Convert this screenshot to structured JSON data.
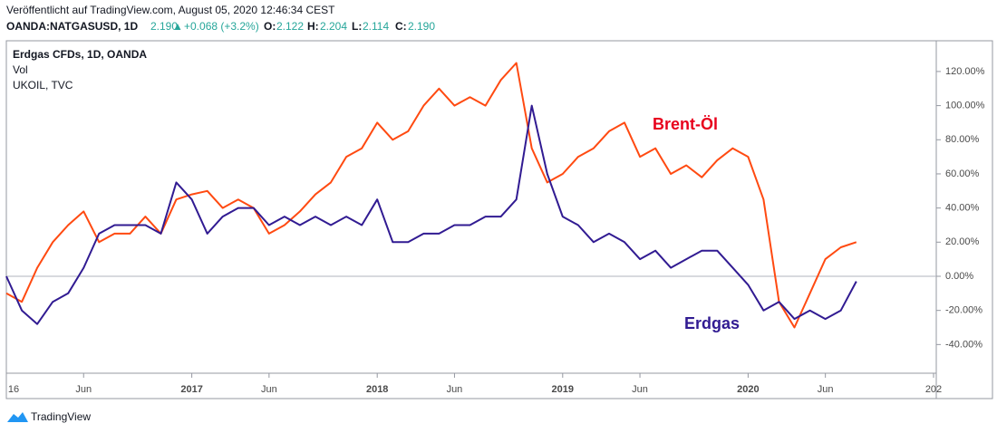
{
  "header": {
    "published": "Veröffentlicht auf TradingView.com, August 05, 2020 12:46:34 CEST",
    "symbol": "OANDA:NATGASUSD, 1D",
    "price": "2.190",
    "arrow": "▲",
    "change": "+0.068 (+3.2%)",
    "o_label": "O:",
    "o": "2.122",
    "h_label": "H:",
    "h": "2.204",
    "l_label": "L:",
    "l": "2.114",
    "c_label": "C:",
    "c": "2.190"
  },
  "legend": [
    "Erdgas CFDs, 1D, OANDA",
    "Vol",
    "UKOIL, TVC"
  ],
  "footer": {
    "logo": "TradingView"
  },
  "chart_data": {
    "type": "line",
    "x": [
      "2016-01",
      "2016-02",
      "2016-03",
      "2016-04",
      "2016-05",
      "2016-06",
      "2016-07",
      "2016-08",
      "2016-09",
      "2016-10",
      "2016-11",
      "2016-12",
      "2017-01",
      "2017-02",
      "2017-03",
      "2017-04",
      "2017-05",
      "2017-06",
      "2017-07",
      "2017-08",
      "2017-09",
      "2017-10",
      "2017-11",
      "2017-12",
      "2018-01",
      "2018-02",
      "2018-03",
      "2018-04",
      "2018-05",
      "2018-06",
      "2018-07",
      "2018-08",
      "2018-09",
      "2018-10",
      "2018-11",
      "2018-12",
      "2019-01",
      "2019-02",
      "2019-03",
      "2019-04",
      "2019-05",
      "2019-06",
      "2019-07",
      "2019-08",
      "2019-09",
      "2019-10",
      "2019-11",
      "2019-12",
      "2020-01",
      "2020-02",
      "2020-03",
      "2020-04",
      "2020-05",
      "2020-06",
      "2020-07",
      "2020-08"
    ],
    "series": [
      {
        "name": "Brent-Öl",
        "color": "#ff4a11",
        "label_color": "#e8001c",
        "values": [
          -10,
          -15,
          5,
          20,
          30,
          38,
          20,
          25,
          25,
          35,
          25,
          45,
          48,
          50,
          40,
          45,
          40,
          25,
          30,
          38,
          48,
          55,
          70,
          75,
          90,
          80,
          85,
          100,
          110,
          100,
          105,
          100,
          115,
          125,
          75,
          55,
          60,
          70,
          75,
          85,
          90,
          70,
          75,
          60,
          65,
          58,
          68,
          75,
          70,
          45,
          -15,
          -30,
          -10,
          10,
          17,
          20
        ]
      },
      {
        "name": "Erdgas",
        "color": "#311b92",
        "label_color": "#311b92",
        "values": [
          0,
          -20,
          -28,
          -15,
          -10,
          5,
          25,
          30,
          30,
          30,
          25,
          55,
          45,
          25,
          35,
          40,
          40,
          30,
          35,
          30,
          35,
          30,
          35,
          30,
          45,
          20,
          20,
          25,
          25,
          30,
          30,
          35,
          35,
          45,
          100,
          60,
          35,
          30,
          20,
          25,
          20,
          10,
          15,
          5,
          10,
          15,
          15,
          5,
          -5,
          -20,
          -15,
          -25,
          -20,
          -25,
          -20,
          -3
        ]
      }
    ],
    "xlim": [
      "2016-01",
      "2021-01"
    ],
    "xticks": [
      {
        "value": "2016-01",
        "label": "16"
      },
      {
        "value": "2016-06",
        "label": "Jun"
      },
      {
        "value": "2017-01",
        "label": "2017"
      },
      {
        "value": "2017-06",
        "label": "Jun"
      },
      {
        "value": "2018-01",
        "label": "2018"
      },
      {
        "value": "2018-06",
        "label": "Jun"
      },
      {
        "value": "2019-01",
        "label": "2019"
      },
      {
        "value": "2019-06",
        "label": "Jun"
      },
      {
        "value": "2020-01",
        "label": "2020"
      },
      {
        "value": "2020-06",
        "label": "Jun"
      },
      {
        "value": "2021-01",
        "label": "202"
      }
    ],
    "ylim": [
      -56.8,
      138
    ],
    "yticks": [
      {
        "value": -40,
        "label": "-40.00%"
      },
      {
        "value": -20,
        "label": "-20.00%"
      },
      {
        "value": 0,
        "label": "0.00%"
      },
      {
        "value": 20,
        "label": "20.00%"
      },
      {
        "value": 40,
        "label": "40.00%"
      },
      {
        "value": 60,
        "label": "60.00%"
      },
      {
        "value": 80,
        "label": "80.00%"
      },
      {
        "value": 100,
        "label": "100.00%"
      },
      {
        "value": 120,
        "label": "120.00%"
      }
    ]
  }
}
